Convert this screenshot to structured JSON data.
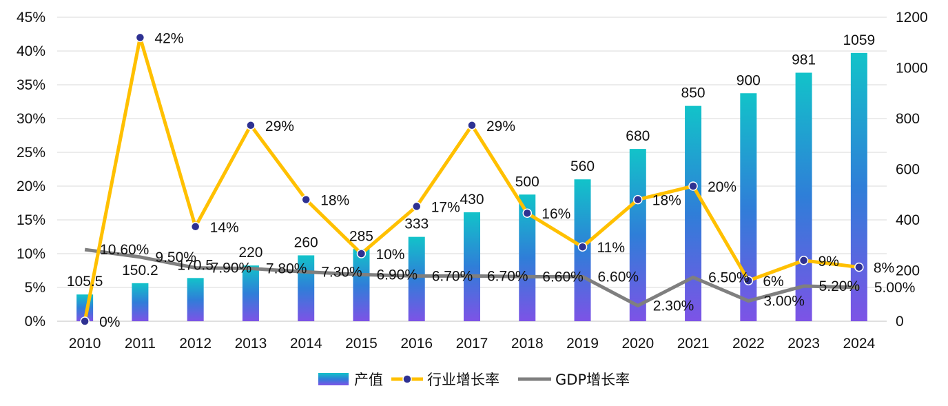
{
  "chart_data": {
    "type": "bar",
    "categories": [
      "2010",
      "2011",
      "2012",
      "2013",
      "2014",
      "2015",
      "2016",
      "2017",
      "2018",
      "2019",
      "2020",
      "2021",
      "2022",
      "2023",
      "2024"
    ],
    "series": [
      {
        "name": "产值",
        "type": "bar",
        "axis": "right",
        "values": [
          105.5,
          150.2,
          170.5,
          220,
          260,
          285,
          333,
          430,
          500,
          560,
          680,
          850,
          900,
          981,
          1059
        ],
        "labels": [
          "105.5",
          "150.2",
          "170.5",
          "220",
          "260",
          "285",
          "333",
          "430",
          "500",
          "560",
          "680",
          "850",
          "900",
          "981",
          "1059"
        ],
        "colors": [
          "#12c3c9",
          "#2f7ed8",
          "#7d53e6"
        ]
      },
      {
        "name": "行业增长率",
        "type": "line",
        "axis": "left",
        "values": [
          0,
          42,
          14,
          29,
          18,
          10,
          17,
          29,
          16,
          11,
          18,
          20,
          6,
          9,
          8
        ],
        "labels": [
          "0%",
          "42%",
          "14%",
          "29%",
          "18%",
          "10%",
          "17%",
          "29%",
          "16%",
          "11%",
          "18%",
          "20%",
          "6%",
          "9%",
          "8%"
        ],
        "color": "#ffc000",
        "marker_color": "#2e3192"
      },
      {
        "name": "GDP增长率",
        "type": "line",
        "axis": "left",
        "values": [
          10.6,
          9.5,
          7.9,
          7.8,
          7.3,
          6.9,
          6.7,
          6.7,
          6.6,
          6.6,
          2.3,
          6.5,
          3.0,
          5.2,
          5.0
        ],
        "labels": [
          "10.60%",
          "9.50%",
          "7.90%",
          "7.80%",
          "7.30%",
          "6.90%",
          "6.70%",
          "6.70%",
          "6.60%",
          "6.60%",
          "2.30%",
          "6.50%",
          "3.00%",
          "5.20%",
          "5.00%"
        ],
        "color": "#7f7f7f"
      }
    ],
    "left_axis": {
      "min": 0,
      "max": 45,
      "step": 5,
      "tick_labels": [
        "0%",
        "5%",
        "10%",
        "15%",
        "20%",
        "25%",
        "30%",
        "35%",
        "40%",
        "45%"
      ]
    },
    "right_axis": {
      "min": 0,
      "max": 1200,
      "step": 200,
      "tick_labels": [
        "0",
        "200",
        "400",
        "600",
        "800",
        "1000",
        "1200"
      ]
    },
    "grid": true,
    "legend_position": "bottom"
  }
}
